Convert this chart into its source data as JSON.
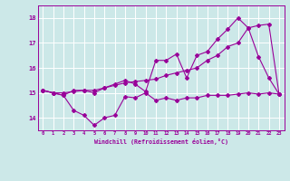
{
  "xlabel": "Windchill (Refroidissement éolien,°C)",
  "background_color": "#cce8e8",
  "grid_color": "#ffffff",
  "line_color": "#990099",
  "x_values": [
    0,
    1,
    2,
    3,
    4,
    5,
    6,
    7,
    8,
    9,
    10,
    11,
    12,
    13,
    14,
    15,
    16,
    17,
    18,
    19,
    20,
    21,
    22,
    23
  ],
  "line1": [
    15.1,
    15.0,
    14.9,
    14.3,
    14.1,
    13.7,
    14.0,
    14.1,
    14.85,
    14.8,
    15.0,
    14.7,
    14.8,
    14.7,
    14.8,
    14.8,
    14.9,
    14.9,
    14.9,
    14.95,
    15.0,
    14.95,
    15.0,
    14.95
  ],
  "line2": [
    15.1,
    15.0,
    15.0,
    15.05,
    15.1,
    15.1,
    15.2,
    15.3,
    15.4,
    15.45,
    15.5,
    15.55,
    15.7,
    15.8,
    15.9,
    16.0,
    16.3,
    16.5,
    16.85,
    17.0,
    17.6,
    17.7,
    17.75,
    14.95
  ],
  "line3": [
    15.1,
    15.0,
    14.9,
    15.1,
    15.1,
    15.0,
    15.2,
    15.35,
    15.5,
    15.35,
    15.05,
    16.3,
    16.3,
    16.55,
    15.6,
    16.5,
    16.65,
    17.15,
    17.55,
    18.0,
    17.6,
    16.45,
    15.6,
    14.95
  ],
  "ylim": [
    13.5,
    18.5
  ],
  "yticks": [
    14,
    15,
    16,
    17,
    18
  ],
  "xlim": [
    -0.5,
    23.5
  ],
  "figsize": [
    3.2,
    2.0
  ],
  "dpi": 100
}
